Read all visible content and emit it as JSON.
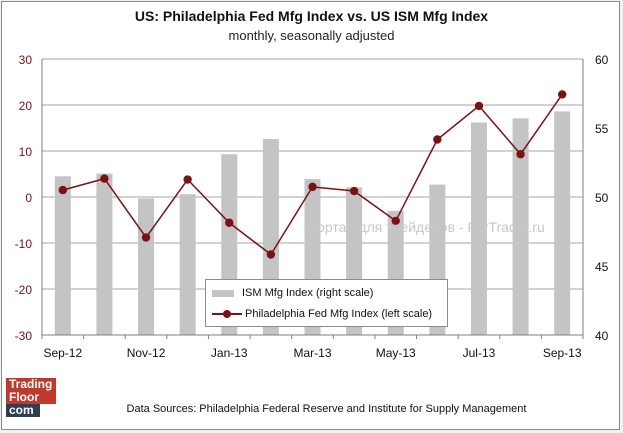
{
  "title": "US: Philadelphia Fed Mfg Index vs. US ISM Mfg Index",
  "subtitle": "monthly, seasonally adjusted",
  "source": "Data Sources: Philadelphia Federal Reserve and Institute for Supply Management",
  "watermark": "Портал для трейдеров - ForTrader.ru",
  "logo": {
    "line1": "Trading",
    "line2": "Floor",
    "line3": "com"
  },
  "legend": {
    "bar_label": "ISM Mfg Index (right scale)",
    "line_label": "Philadelphia Fed Mfg Index (left scale)"
  },
  "colors": {
    "bar": "#c4c4c4",
    "line": "#7b1113",
    "grid": "#a6a6a6"
  },
  "chart_data": {
    "type": "bar+line",
    "categories": [
      "Sep-12",
      "Oct-12",
      "Nov-12",
      "Dec-12",
      "Jan-13",
      "Feb-13",
      "Mar-13",
      "Apr-13",
      "May-13",
      "Jun-13",
      "Jul-13",
      "Aug-13",
      "Sep-13"
    ],
    "x_tick_labels": [
      "Sep-12",
      "Nov-12",
      "Jan-13",
      "Mar-13",
      "May-13",
      "Jul-13",
      "Sep-13"
    ],
    "series": [
      {
        "name": "ISM Mfg Index (right scale)",
        "type": "bar",
        "axis": "right",
        "values": [
          51.5,
          51.7,
          49.9,
          50.2,
          53.1,
          54.2,
          51.3,
          50.7,
          49.0,
          50.9,
          55.4,
          55.7,
          56.2
        ]
      },
      {
        "name": "Philadelphia Fed Mfg Index (left scale)",
        "type": "line",
        "axis": "left",
        "values": [
          1.5,
          4.0,
          -8.8,
          3.8,
          -5.6,
          -12.5,
          2.2,
          1.3,
          -5.2,
          12.5,
          19.8,
          9.3,
          22.3
        ]
      }
    ],
    "y_left": {
      "range": [
        -30,
        30
      ],
      "ticks": [
        30,
        20,
        10,
        0,
        -10,
        -20,
        -30
      ]
    },
    "y_right": {
      "range": [
        40,
        60
      ],
      "ticks": [
        60,
        55,
        50,
        45,
        40
      ]
    },
    "grid": true,
    "legend_position": "bottom-center"
  }
}
